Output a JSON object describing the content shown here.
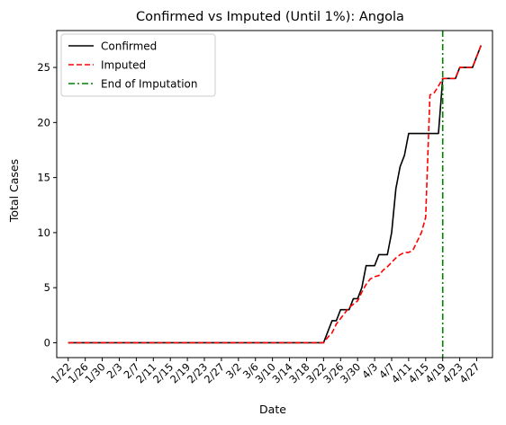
{
  "chart_data": {
    "type": "line",
    "title": "Confirmed vs Imputed (Until 1%): Angola",
    "xlabel": "Date",
    "ylabel": "Total Cases",
    "x_tick_labels": [
      "1/22",
      "1/26",
      "1/30",
      "2/3",
      "2/7",
      "2/11",
      "2/15",
      "2/19",
      "2/23",
      "2/27",
      "3/2",
      "3/6",
      "3/10",
      "3/14",
      "3/18",
      "3/22",
      "3/26",
      "3/30",
      "4/3",
      "4/7",
      "4/11",
      "4/15",
      "4/19",
      "4/23",
      "4/27"
    ],
    "x_range_days": [
      -2.7,
      99.7
    ],
    "y_ticks": [
      0,
      5,
      10,
      15,
      20,
      25
    ],
    "ylim": [
      -1.35,
      28.35
    ],
    "grid": false,
    "legend_position": "top-left",
    "end_of_imputation_day": 88,
    "series": [
      {
        "name": "Confirmed",
        "color": "#000000",
        "dash": "solid",
        "points": [
          [
            0,
            0
          ],
          [
            60,
            0
          ],
          [
            61,
            1
          ],
          [
            62,
            2
          ],
          [
            63,
            2
          ],
          [
            64,
            3
          ],
          [
            65,
            3
          ],
          [
            66,
            3
          ],
          [
            67,
            4
          ],
          [
            68,
            4
          ],
          [
            69,
            5
          ],
          [
            70,
            7
          ],
          [
            71,
            7
          ],
          [
            72,
            7
          ],
          [
            73,
            8
          ],
          [
            74,
            8
          ],
          [
            75,
            8
          ],
          [
            76,
            10
          ],
          [
            77,
            14
          ],
          [
            78,
            16
          ],
          [
            79,
            17
          ],
          [
            80,
            19
          ],
          [
            81,
            19
          ],
          [
            82,
            19
          ],
          [
            83,
            19
          ],
          [
            84,
            19
          ],
          [
            85,
            19
          ],
          [
            86,
            19
          ],
          [
            87,
            19
          ],
          [
            88,
            24
          ],
          [
            89,
            24
          ],
          [
            90,
            24
          ],
          [
            91,
            24
          ],
          [
            92,
            25
          ],
          [
            93,
            25
          ],
          [
            94,
            25
          ],
          [
            95,
            25
          ],
          [
            96,
            26
          ],
          [
            97,
            27
          ]
        ]
      },
      {
        "name": "Imputed",
        "color": "#ff0000",
        "dash": "dashed",
        "points": [
          [
            0,
            0
          ],
          [
            60,
            0
          ],
          [
            61,
            0.5
          ],
          [
            62,
            0.9
          ],
          [
            63,
            1.7
          ],
          [
            64,
            2.2
          ],
          [
            65,
            2.7
          ],
          [
            66,
            3.2
          ],
          [
            67,
            3.5
          ],
          [
            68,
            3.8
          ],
          [
            69,
            4.6
          ],
          [
            70,
            5.3
          ],
          [
            71,
            5.8
          ],
          [
            72,
            6.0
          ],
          [
            73,
            6.1
          ],
          [
            74,
            6.6
          ],
          [
            75,
            6.9
          ],
          [
            76,
            7.3
          ],
          [
            77,
            7.7
          ],
          [
            78,
            8.0
          ],
          [
            79,
            8.2
          ],
          [
            80,
            8.2
          ],
          [
            81,
            8.4
          ],
          [
            82,
            9.2
          ],
          [
            83,
            10.0
          ],
          [
            84,
            11.4
          ],
          [
            85,
            22.5
          ],
          [
            86,
            22.7
          ],
          [
            87,
            23.3
          ],
          [
            88,
            24
          ],
          [
            89,
            24
          ],
          [
            90,
            24
          ],
          [
            91,
            24
          ],
          [
            92,
            25
          ],
          [
            93,
            25
          ],
          [
            94,
            25
          ],
          [
            95,
            25
          ],
          [
            96,
            26
          ],
          [
            97,
            27
          ]
        ]
      },
      {
        "name": "End of Imputation",
        "color": "#008000",
        "dash": "dashdot",
        "vertical_line_at_day": 88
      }
    ]
  }
}
